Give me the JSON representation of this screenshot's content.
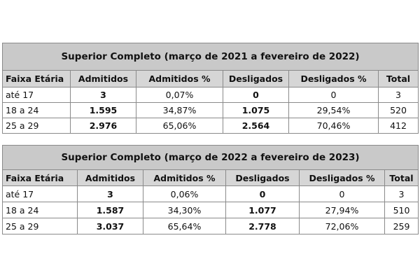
{
  "tables": [
    {
      "title": "Superior Completo (março de 2021 a  fevereiro de 2022)",
      "headers": [
        "Faixa Etária",
        "Admitidos",
        "Admitidos %",
        "Desligados",
        "Desligados %",
        "Total"
      ],
      "rows": [
        [
          "até 17",
          "3",
          "0,07%",
          "0",
          "0",
          "3"
        ],
        [
          "18 a 24",
          "1.595",
          "34,87%",
          "1.075",
          "29,54%",
          "520"
        ],
        [
          "25 a 29",
          "2.976",
          "65,06%",
          "2.564",
          "70,46%",
          "412"
        ]
      ]
    },
    {
      "title": "Superior Completo (março de 2022 a  fevereiro de 2023)",
      "headers": [
        "Faixa Etária",
        "Admitidos",
        "Admitidos %",
        "Desligados",
        "Desligados %",
        "Total"
      ],
      "rows": [
        [
          "até 17",
          "3",
          "0,06%",
          "0",
          "0",
          "3"
        ],
        [
          "18 a 24",
          "1.587",
          "34,30%",
          "1.077",
          "27,94%",
          "510"
        ],
        [
          "25 a 29",
          "3.037",
          "65,64%",
          "2.778",
          "72,06%",
          "259"
        ]
      ]
    }
  ]
}
